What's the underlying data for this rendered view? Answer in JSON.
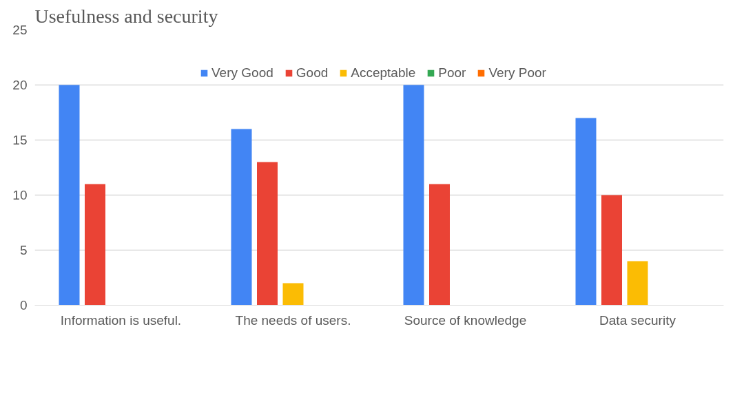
{
  "chart_data": {
    "type": "bar",
    "title": "Usefulness and security",
    "categories": [
      "Information is useful.",
      "The needs of users.",
      "Source of knowledge",
      "Data security"
    ],
    "series": [
      {
        "name": "Very Good",
        "color": "#4285f4",
        "values": [
          20,
          16,
          20,
          17
        ]
      },
      {
        "name": "Good",
        "color": "#ea4335",
        "values": [
          11,
          13,
          11,
          10
        ]
      },
      {
        "name": "Acceptable",
        "color": "#fbbc04",
        "values": [
          0,
          2,
          0,
          4
        ]
      },
      {
        "name": "Poor",
        "color": "#34a853",
        "values": [
          0,
          0,
          0,
          0
        ]
      },
      {
        "name": "Very Poor",
        "color": "#ff6d01",
        "values": [
          0,
          0,
          0,
          0
        ]
      }
    ],
    "ylim": [
      0,
      25
    ],
    "yticks": [
      0,
      5,
      10,
      15,
      20,
      25
    ],
    "grid": "y",
    "legend": "top"
  }
}
